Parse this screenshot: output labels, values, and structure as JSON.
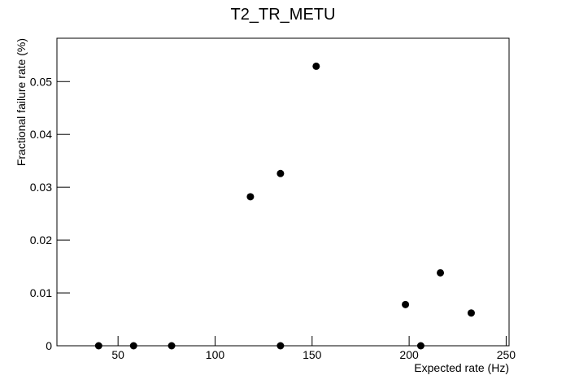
{
  "chart_data": {
    "type": "scatter",
    "title": "T2_TR_METU",
    "x_label": "Expected rate (Hz)",
    "y_label": "Fractional failure rate (%)",
    "series": [
      {
        "color": "#000000",
        "x": [
          40,
          58,
          77.6,
          118.2,
          133.7,
          133.7,
          152.1,
          198.1,
          206,
          216.1,
          232
        ],
        "values": [
          0,
          0,
          0,
          0.0282,
          0.0326,
          0,
          0.0529,
          0.0078,
          0,
          0.0138,
          0.0062
        ]
      }
    ],
    "xlim": [
      18.5,
      251.5
    ],
    "xticks": [
      50,
      100,
      150,
      200,
      250
    ],
    "ylim": [
      0,
      0.0582
    ],
    "yticks": [
      0,
      0.01,
      0.02,
      0.03,
      0.04,
      0.05
    ]
  }
}
